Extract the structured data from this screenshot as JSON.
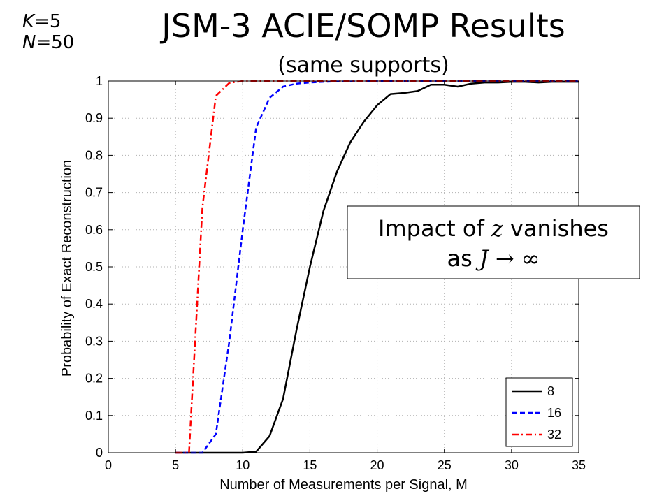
{
  "header": {
    "title": "JSM-3 ACIE/SOMP Results",
    "subtitle": "(same supports)",
    "param_k_sym": "K",
    "param_k_val": "=5",
    "param_n_sym": "N",
    "param_n_val": "=50"
  },
  "annotation": {
    "line1_pre": "Impact of ",
    "line1_math": "z",
    "line1_post": " vanishes",
    "line2_pre": "as ",
    "line2_math": "J → ∞"
  },
  "chart_data": {
    "type": "line",
    "xlabel": "Number of Measurements per Signal, M",
    "ylabel": "Probability of Exact Reconstruction",
    "xlim": [
      0,
      35
    ],
    "ylim": [
      0,
      1
    ],
    "xticks": [
      0,
      5,
      10,
      15,
      20,
      25,
      30,
      35
    ],
    "yticks": [
      0,
      0.1,
      0.2,
      0.3,
      0.4,
      0.5,
      0.6,
      0.7,
      0.8,
      0.9,
      1
    ],
    "grid": true,
    "legend_position": "bottom-right",
    "colors": {
      "8": "#000000",
      "16": "#0000ff",
      "32": "#ff0000"
    },
    "series": [
      {
        "name": "8",
        "style": "solid",
        "x": [
          5,
          6,
          7,
          8,
          9,
          10,
          11,
          12,
          13,
          14,
          15,
          16,
          17,
          18,
          19,
          20,
          21,
          22,
          23,
          24,
          25,
          26,
          27,
          28,
          29,
          30,
          31,
          32,
          33,
          34,
          35
        ],
        "y": [
          0,
          0,
          0,
          0,
          0,
          0,
          0.003,
          0.045,
          0.145,
          0.33,
          0.5,
          0.65,
          0.755,
          0.835,
          0.89,
          0.935,
          0.965,
          0.968,
          0.973,
          0.99,
          0.99,
          0.985,
          0.993,
          0.996,
          0.996,
          0.998,
          0.998,
          0.996,
          0.998,
          0.998,
          0.998
        ]
      },
      {
        "name": "16",
        "style": "dashed",
        "x": [
          5,
          6,
          7,
          8,
          9,
          10,
          11,
          12,
          13,
          14,
          15,
          16,
          17,
          18,
          19,
          20,
          21,
          22,
          23,
          24,
          25,
          26,
          27,
          28,
          29,
          30,
          31,
          32,
          33,
          34,
          35
        ],
        "y": [
          0,
          0,
          0,
          0.05,
          0.3,
          0.6,
          0.875,
          0.955,
          0.985,
          0.993,
          0.996,
          0.998,
          0.999,
          0.999,
          1,
          1,
          1,
          1,
          1,
          1,
          1,
          1,
          1,
          1,
          1,
          1,
          1,
          1,
          1,
          1,
          1
        ]
      },
      {
        "name": "32",
        "style": "dashdot",
        "x": [
          5,
          6,
          7,
          8,
          9,
          10,
          11,
          12,
          13,
          14,
          15,
          16,
          17,
          18,
          19,
          20,
          21,
          22,
          23,
          24,
          25,
          26,
          27,
          28,
          29,
          30,
          31,
          32,
          33,
          34,
          35
        ],
        "y": [
          0,
          0,
          0.66,
          0.96,
          0.995,
          1,
          1,
          1,
          1,
          1,
          1,
          1,
          1,
          1,
          1,
          1,
          1,
          1,
          1,
          1,
          1,
          1,
          1,
          1,
          1,
          1,
          1,
          1,
          1,
          1,
          1
        ]
      }
    ]
  }
}
